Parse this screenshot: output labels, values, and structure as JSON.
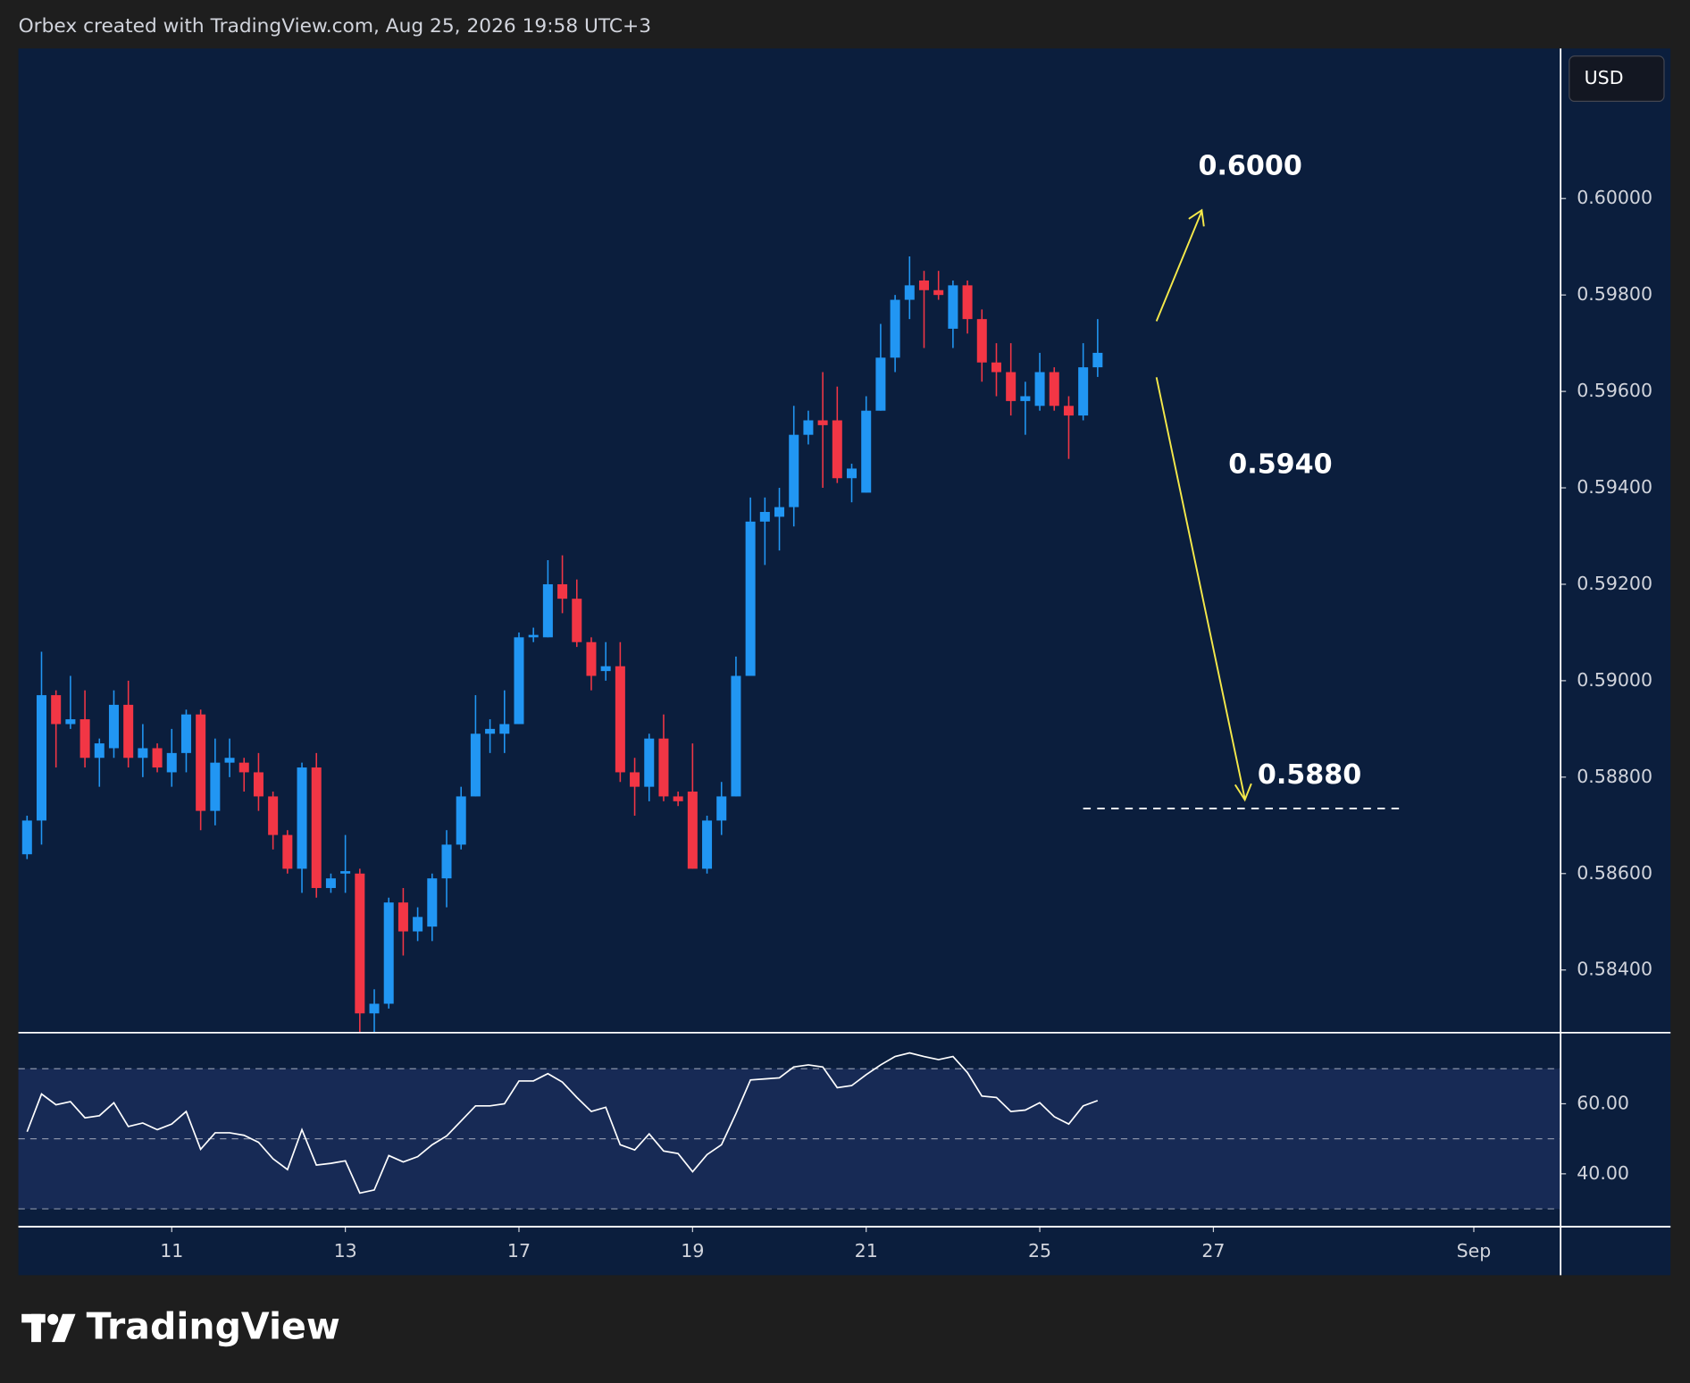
{
  "header": {
    "text": "Orbex created with TradingView.com, Aug 25, 2026 19:58 UTC+3"
  },
  "currency": "USD",
  "brand": "TradingView",
  "chart_data": [
    {
      "type": "candlestick",
      "open": [
        0.5864,
        0.5871,
        0.5897,
        0.5891,
        0.5892,
        0.5884,
        0.5886,
        0.5895,
        0.5884,
        0.5886,
        0.5881,
        0.5885,
        0.5893,
        0.5873,
        0.5883,
        0.5883,
        0.5881,
        0.5876,
        0.5868,
        0.5861,
        0.5882,
        0.5857,
        0.586,
        0.586,
        0.5831,
        0.5833,
        0.5854,
        0.5848,
        0.5849,
        0.5859,
        0.5866,
        0.5876,
        0.5889,
        0.5889,
        0.5891,
        0.5909,
        0.5909,
        0.592,
        0.5917,
        0.5908,
        0.5902,
        0.5903,
        0.5881,
        0.5878,
        0.5888,
        0.5876,
        0.5877,
        0.5861,
        0.5871,
        0.5876,
        0.5901,
        0.5933,
        0.5934,
        0.5936,
        0.5951,
        0.5954,
        0.5954,
        0.5942,
        0.5939,
        0.5956,
        0.5967,
        0.5979,
        0.5983,
        0.5981,
        0.5973,
        0.5982,
        0.5975,
        0.5966,
        0.5964,
        0.5958,
        0.5957,
        0.5964,
        0.5957,
        0.5955,
        0.5965
      ],
      "high": [
        0.5872,
        0.5906,
        0.5898,
        0.5901,
        0.5898,
        0.5888,
        0.5898,
        0.59,
        0.5891,
        0.5887,
        0.589,
        0.5894,
        0.5894,
        0.5888,
        0.5888,
        0.5884,
        0.5885,
        0.5877,
        0.5869,
        0.5883,
        0.5885,
        0.586,
        0.5868,
        0.5861,
        0.5836,
        0.5855,
        0.5857,
        0.5853,
        0.586,
        0.5869,
        0.5878,
        0.5897,
        0.5892,
        0.5898,
        0.591,
        0.5911,
        0.5925,
        0.5926,
        0.5921,
        0.5909,
        0.5908,
        0.5908,
        0.5884,
        0.5889,
        0.5893,
        0.5877,
        0.5887,
        0.5872,
        0.5879,
        0.5905,
        0.5938,
        0.5938,
        0.594,
        0.5957,
        0.5956,
        0.5964,
        0.5961,
        0.5945,
        0.5959,
        0.5974,
        0.598,
        0.5988,
        0.5985,
        0.5985,
        0.5983,
        0.5983,
        0.5977,
        0.597,
        0.597,
        0.5962,
        0.5968,
        0.5965,
        0.5959,
        0.597,
        0.5975
      ],
      "low": [
        0.5863,
        0.5866,
        0.5882,
        0.589,
        0.5882,
        0.5878,
        0.5884,
        0.5882,
        0.588,
        0.5881,
        0.5878,
        0.5881,
        0.5869,
        0.587,
        0.588,
        0.5877,
        0.5873,
        0.5865,
        0.586,
        0.5856,
        0.5855,
        0.5856,
        0.5856,
        0.5827,
        0.5827,
        0.5832,
        0.5843,
        0.5846,
        0.5846,
        0.5853,
        0.5865,
        0.5876,
        0.5885,
        0.5885,
        0.5891,
        0.5908,
        0.5909,
        0.5914,
        0.5907,
        0.5898,
        0.59,
        0.5879,
        0.5872,
        0.5875,
        0.5875,
        0.5874,
        0.5861,
        0.586,
        0.5868,
        0.5876,
        0.5901,
        0.5924,
        0.5927,
        0.5932,
        0.5949,
        0.594,
        0.5941,
        0.5937,
        0.5939,
        0.5956,
        0.5964,
        0.5975,
        0.5969,
        0.5979,
        0.5969,
        0.5972,
        0.5962,
        0.5959,
        0.5955,
        0.5951,
        0.5956,
        0.5956,
        0.5946,
        0.5954,
        0.5963
      ],
      "close": [
        0.5871,
        0.5897,
        0.5891,
        0.5892,
        0.5884,
        0.5887,
        0.5895,
        0.5884,
        0.5886,
        0.5882,
        0.5885,
        0.5893,
        0.5873,
        0.5883,
        0.5884,
        0.5881,
        0.5876,
        0.5868,
        0.5861,
        0.5882,
        0.5857,
        0.5859,
        0.58605,
        0.5831,
        0.5833,
        0.5854,
        0.5848,
        0.5851,
        0.5859,
        0.5866,
        0.5876,
        0.5889,
        0.589,
        0.5891,
        0.5909,
        0.59095,
        0.592,
        0.5917,
        0.5908,
        0.5901,
        0.5903,
        0.5881,
        0.5878,
        0.5888,
        0.5876,
        0.5875,
        0.5861,
        0.5871,
        0.5876,
        0.5901,
        0.5933,
        0.5935,
        0.5936,
        0.5951,
        0.5954,
        0.5953,
        0.5942,
        0.5944,
        0.5956,
        0.5967,
        0.5979,
        0.5982,
        0.5981,
        0.598,
        0.5982,
        0.5975,
        0.5966,
        0.5964,
        0.5958,
        0.5959,
        0.5964,
        0.5957,
        0.5955,
        0.5965,
        0.5968
      ],
      "up_color": "#2196f3",
      "down_color": "#f23645",
      "ylim": [
        0.5827,
        0.603
      ],
      "yticks": [
        {
          "value": 0.584,
          "label": "0.58400"
        },
        {
          "value": 0.586,
          "label": "0.58600"
        },
        {
          "value": 0.588,
          "label": "0.58800"
        },
        {
          "value": 0.59,
          "label": "0.59000"
        },
        {
          "value": 0.592,
          "label": "0.59200"
        },
        {
          "value": 0.594,
          "label": "0.59400"
        },
        {
          "value": 0.596,
          "label": "0.59600"
        },
        {
          "value": 0.598,
          "label": "0.59800"
        },
        {
          "value": 0.6,
          "label": "0.60000"
        }
      ],
      "xlim": [
        -0.6,
        106
      ],
      "xticks": [
        {
          "value": 10,
          "label": "11"
        },
        {
          "value": 22,
          "label": "13"
        },
        {
          "value": 34,
          "label": "17"
        },
        {
          "value": 46,
          "label": "19"
        },
        {
          "value": 58,
          "label": "21"
        },
        {
          "value": 70,
          "label": "25"
        },
        {
          "value": 82,
          "label": "27"
        },
        {
          "value": 100,
          "label": "Sep"
        }
      ],
      "annotations": [
        "0.6000",
        "0.5940",
        "0.5880"
      ]
    },
    {
      "type": "line",
      "values": [
        52,
        62.8,
        59.7,
        60.6,
        56,
        56.6,
        60.3,
        53.5,
        54.5,
        52.6,
        54.2,
        57.8,
        47,
        51.7,
        51.7,
        51,
        49,
        44.3,
        41.2,
        52.6,
        42.5,
        43,
        43.7,
        34.5,
        35.4,
        45.2,
        43.4,
        44.9,
        48.3,
        50.8,
        55.1,
        59.4,
        59.4,
        60,
        66.5,
        66.5,
        68.6,
        66.2,
        61.8,
        57.8,
        59,
        48.3,
        46.8,
        51.4,
        46.5,
        45.8,
        40.6,
        45.5,
        48.3,
        57.2,
        66.8,
        67.1,
        67.4,
        70.5,
        71.1,
        70.5,
        64.6,
        65.2,
        68.3,
        71.1,
        73.5,
        74.5,
        73.5,
        72.6,
        73.5,
        68.9,
        62.2,
        61.8,
        57.8,
        58.2,
        60.3,
        56.3,
        54.2,
        59.4,
        60.9
      ],
      "color": "#ffffff",
      "ylim": [
        24.9,
        80.3
      ],
      "yticks": [
        {
          "value": 40,
          "label": "40.00"
        },
        {
          "value": 60,
          "label": "60.00"
        }
      ],
      "levels": [
        30,
        50,
        70
      ]
    }
  ]
}
